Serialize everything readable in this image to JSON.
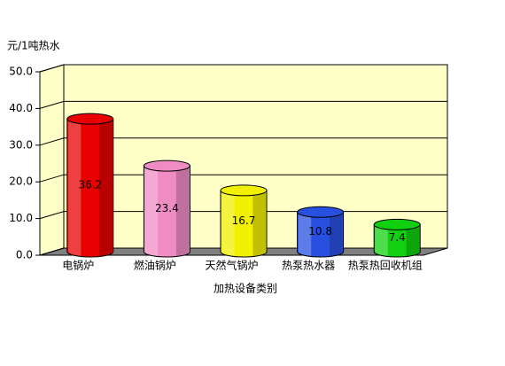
{
  "chart_data": {
    "type": "bar3d",
    "y_label": "元/1吨热水",
    "x_label": "加热设备类别",
    "categories": [
      "电锅炉",
      "燃油锅炉",
      "天然气锅炉",
      "热泵热水器",
      "热泵热回收机组"
    ],
    "values": [
      36.2,
      23.4,
      16.7,
      10.8,
      7.4
    ],
    "colors": [
      "#e80000",
      "#f08cc4",
      "#f0f000",
      "#2850e0",
      "#10d010"
    ],
    "ylim": [
      0,
      50
    ],
    "yticks": [
      {
        "value": 0,
        "label": "0.0"
      },
      {
        "value": 10,
        "label": "10.0"
      },
      {
        "value": 20,
        "label": "20.0"
      },
      {
        "value": 30,
        "label": "30.0"
      },
      {
        "value": 40,
        "label": "40.0"
      },
      {
        "value": 50,
        "label": "50.0"
      }
    ],
    "grid": true
  }
}
